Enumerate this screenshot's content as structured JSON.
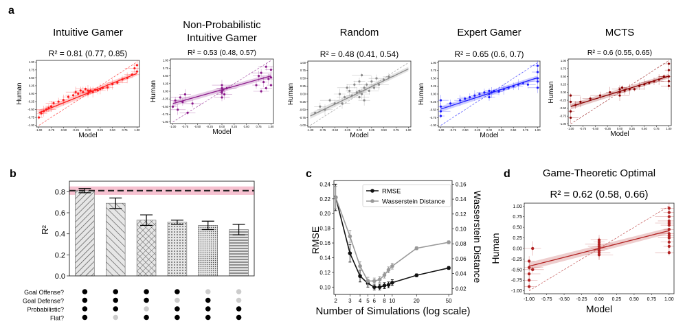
{
  "panels": {
    "a": "a",
    "b": "b",
    "c": "c",
    "d": "d"
  },
  "chart_data": [
    {
      "panel": "a",
      "type": "scatter",
      "title": "Intuitive Gamer",
      "r2": "R² = 0.81 (0.77, 0.85)",
      "xlabel": "Model",
      "ylabel": "Human",
      "xlim": [
        -1.05,
        1.05
      ],
      "ylim": [
        -1.05,
        1.05
      ],
      "xticks": [
        "-1.00",
        "-0.75",
        "-0.50",
        "-0.25",
        "0.00",
        "0.25",
        "0.50",
        "0.75",
        "1.00"
      ],
      "yticks": [
        "1.00",
        "0.75",
        "0.50",
        "0.25",
        "0.00",
        "-0.25",
        "-0.50",
        "-0.75",
        "-1.00"
      ],
      "color": "#ff1a1a",
      "fit": {
        "slope": 0.62,
        "intercept": 0.02
      },
      "points": [
        [
          -1,
          -0.75
        ],
        [
          -0.95,
          -0.62
        ],
        [
          -0.9,
          -0.55
        ],
        [
          -0.85,
          -0.5
        ],
        [
          -0.8,
          -0.45
        ],
        [
          -0.75,
          -0.4
        ],
        [
          -0.7,
          -0.3
        ],
        [
          -0.6,
          -0.25
        ],
        [
          -0.5,
          -0.2
        ],
        [
          -0.4,
          -0.1
        ],
        [
          -0.3,
          -0.05
        ],
        [
          -0.25,
          0.05
        ],
        [
          -0.2,
          0.0
        ],
        [
          -0.15,
          0.1
        ],
        [
          -0.1,
          0.05
        ],
        [
          -0.05,
          0.15
        ],
        [
          0,
          0.0
        ],
        [
          0,
          0.1
        ],
        [
          0.02,
          0.05
        ],
        [
          0.05,
          0.1
        ],
        [
          0.1,
          0.05
        ],
        [
          0.15,
          0.12
        ],
        [
          0.2,
          0.1
        ],
        [
          0.25,
          0.15
        ],
        [
          0.3,
          0.18
        ],
        [
          0.4,
          0.2
        ],
        [
          0.5,
          0.3
        ],
        [
          0.6,
          0.35
        ],
        [
          0.7,
          0.45
        ],
        [
          0.8,
          0.5
        ],
        [
          0.9,
          0.6
        ],
        [
          0.95,
          0.8
        ],
        [
          1,
          0.9
        ],
        [
          1,
          0.7
        ]
      ]
    },
    {
      "panel": "a",
      "type": "scatter",
      "title": "Non-Probabilistic Intuitive Gamer",
      "title_lines": [
        "Non-Probabilistic",
        "Intuitive Gamer"
      ],
      "r2": "R² = 0.53 (0.48, 0.57)",
      "xlabel": "Model",
      "ylabel": "Human",
      "xlim": [
        -1.05,
        1.05
      ],
      "ylim": [
        -1.05,
        1.05
      ],
      "xticks": [
        "-1.00",
        "-0.75",
        "-0.50",
        "-0.25",
        "0.00",
        "0.25",
        "0.50",
        "0.75",
        "1.00"
      ],
      "yticks": [
        "1.00",
        "0.75",
        "0.50",
        "0.25",
        "0.00",
        "-0.25",
        "-0.50",
        "-0.75",
        "-1.00"
      ],
      "color": "#8b1a8b",
      "fit": {
        "slope": 0.45,
        "intercept": 0.05
      },
      "points": [
        [
          -1,
          -0.5
        ],
        [
          -0.95,
          -0.3
        ],
        [
          -0.9,
          -0.6
        ],
        [
          -0.85,
          -0.2
        ],
        [
          -0.8,
          -0.35
        ],
        [
          -0.75,
          -0.1
        ],
        [
          -0.7,
          -0.7
        ],
        [
          -0.6,
          -0.4
        ],
        [
          0,
          0.0
        ],
        [
          0,
          0.1
        ],
        [
          0,
          -0.2
        ],
        [
          0,
          0.2
        ],
        [
          0.02,
          0.05
        ],
        [
          0,
          -0.05
        ],
        [
          0.05,
          -0.1
        ],
        [
          0.1,
          0.1
        ],
        [
          0.7,
          0.2
        ],
        [
          0.75,
          0.5
        ],
        [
          0.8,
          0.0
        ],
        [
          0.8,
          0.6
        ],
        [
          0.85,
          0.3
        ],
        [
          0.9,
          0.1
        ],
        [
          0.9,
          0.8
        ],
        [
          0.95,
          0.4
        ],
        [
          1,
          0.2
        ],
        [
          1,
          0.7
        ],
        [
          1,
          0.45
        ]
      ]
    },
    {
      "panel": "a",
      "type": "scatter",
      "title": "Random",
      "r2": "R² = 0.48 (0.41, 0.54)",
      "xlabel": "Model",
      "ylabel": "Human",
      "xlim": [
        -1.05,
        1.05
      ],
      "ylim": [
        -1.05,
        1.05
      ],
      "xticks": [
        "-1.00",
        "-0.75",
        "-0.50",
        "-0.25",
        "0.00",
        "0.25",
        "0.50",
        "0.75",
        "1.00"
      ],
      "yticks": [
        "1.00",
        "0.75",
        "0.50",
        "0.25",
        "0.00",
        "-0.25",
        "-0.50",
        "-0.75",
        "-1.00"
      ],
      "color": "#888888",
      "fit": {
        "slope": 0.75,
        "intercept": 0.05
      },
      "points": [
        [
          -0.9,
          -0.6
        ],
        [
          -0.8,
          -0.4
        ],
        [
          -0.7,
          -0.5
        ],
        [
          -0.6,
          -0.2
        ],
        [
          -0.5,
          -0.3
        ],
        [
          -0.4,
          0.0
        ],
        [
          -0.3,
          -0.1
        ],
        [
          -0.25,
          0.2
        ],
        [
          -0.2,
          0.1
        ],
        [
          -0.15,
          -0.05
        ],
        [
          -0.1,
          0.3
        ],
        [
          -0.05,
          0.05
        ],
        [
          0,
          0.1
        ],
        [
          0,
          0.4
        ],
        [
          0.05,
          0.0
        ],
        [
          0.05,
          0.6
        ],
        [
          0.1,
          0.2
        ],
        [
          0.1,
          -0.2
        ],
        [
          0.15,
          0.3
        ],
        [
          0.2,
          0.1
        ],
        [
          0.25,
          0.4
        ],
        [
          0.3,
          0.2
        ],
        [
          0.35,
          0.5
        ],
        [
          0.4,
          0.3
        ],
        [
          0.5,
          0.45
        ],
        [
          0.6,
          0.55
        ],
        [
          -0.35,
          -0.3
        ],
        [
          0.0,
          -0.1
        ]
      ]
    },
    {
      "panel": "a",
      "type": "scatter",
      "title": "Expert Gamer",
      "r2": "R² = 0.65 (0.6, 0.7)",
      "xlabel": "Model",
      "ylabel": "Human",
      "xlim": [
        -1.05,
        1.05
      ],
      "ylim": [
        -1.05,
        1.05
      ],
      "xticks": [
        "-1.00",
        "-0.75",
        "-0.50",
        "-0.25",
        "0.00",
        "0.25",
        "0.50",
        "0.75",
        "1.00"
      ],
      "yticks": [
        "1.00",
        "0.75",
        "0.50",
        "0.25",
        "0.00",
        "-0.25",
        "-0.50",
        "-0.75",
        "-1.00"
      ],
      "color": "#1a1aff",
      "fit": {
        "slope": 0.5,
        "intercept": 0.02
      },
      "points": [
        [
          -1,
          -0.7
        ],
        [
          -1,
          -0.4
        ],
        [
          -1,
          -0.2
        ],
        [
          -1,
          -0.55
        ],
        [
          -0.8,
          -0.3
        ],
        [
          -0.6,
          -0.2
        ],
        [
          -0.5,
          -0.15
        ],
        [
          -0.4,
          -0.1
        ],
        [
          -0.3,
          -0.05
        ],
        [
          -0.2,
          0.0
        ],
        [
          -0.1,
          0.05
        ],
        [
          0,
          0.0
        ],
        [
          0,
          0.1
        ],
        [
          0,
          -0.1
        ],
        [
          0.05,
          0.05
        ],
        [
          0.1,
          0.1
        ],
        [
          0.2,
          0.08
        ],
        [
          0.3,
          0.15
        ],
        [
          0.4,
          0.2
        ],
        [
          0.5,
          0.25
        ],
        [
          0.6,
          0.3
        ],
        [
          0.7,
          0.35
        ],
        [
          0.8,
          0.3
        ],
        [
          1,
          0.2
        ],
        [
          1,
          0.5
        ],
        [
          1,
          0.7
        ],
        [
          1,
          0.9
        ],
        [
          1,
          0.4
        ]
      ]
    },
    {
      "panel": "a",
      "type": "scatter",
      "title": "MCTS",
      "r2": "R² = 0.6 (0.55, 0.65)",
      "xlabel": "Model",
      "ylabel": "Human",
      "xlim": [
        -1.05,
        1.05
      ],
      "ylim": [
        -1.05,
        1.05
      ],
      "xticks": [
        "-1.00",
        "-0.75",
        "-0.50",
        "-0.25",
        "0.00",
        "0.25",
        "0.50",
        "0.75",
        "1.00"
      ],
      "yticks": [
        "1.00",
        "0.75",
        "0.50",
        "0.25",
        "0.00",
        "-0.25",
        "-0.50",
        "-0.75",
        "-1.00"
      ],
      "color": "#8b0000",
      "fit": {
        "slope": 0.48,
        "intercept": 0.03
      },
      "points": [
        [
          -1,
          -0.6
        ],
        [
          -1,
          -0.3
        ],
        [
          -1,
          -0.8
        ],
        [
          -1,
          -0.1
        ],
        [
          -0.9,
          -0.4
        ],
        [
          -0.8,
          -0.3
        ],
        [
          -0.6,
          -0.2
        ],
        [
          -0.4,
          -0.1
        ],
        [
          -0.2,
          0.0
        ],
        [
          0,
          0.0
        ],
        [
          0,
          0.1
        ],
        [
          0,
          -0.1
        ],
        [
          0.05,
          0.15
        ],
        [
          0.1,
          0.05
        ],
        [
          0.2,
          0.1
        ],
        [
          0.3,
          0.1
        ],
        [
          0.4,
          0.2
        ],
        [
          0.5,
          0.25
        ],
        [
          0.6,
          0.3
        ],
        [
          0.7,
          0.35
        ],
        [
          0.8,
          0.4
        ],
        [
          0.9,
          0.5
        ],
        [
          1,
          0.2
        ],
        [
          1,
          0.5
        ],
        [
          1,
          0.7
        ],
        [
          1,
          0.9
        ],
        [
          1,
          0.35
        ]
      ]
    },
    {
      "panel": "b",
      "type": "bar",
      "ylabel": "R²",
      "ylim": [
        0,
        0.9
      ],
      "yticks": [
        "0.0",
        "0.2",
        "0.4",
        "0.6",
        "0.8"
      ],
      "values": [
        0.81,
        0.69,
        0.53,
        0.51,
        0.48,
        0.44
      ],
      "errors": [
        0.02,
        0.05,
        0.05,
        0.02,
        0.04,
        0.05
      ],
      "reference": 0.81,
      "band": [
        0.77,
        0.85
      ],
      "hatches": [
        "diag",
        "diag-wide",
        "cross",
        "dots",
        "dots-fine",
        "horiz"
      ],
      "row_labels": [
        "Goal Offense?",
        "Goal Defense?",
        "Probabilistic?",
        "Flat?"
      ],
      "dots": [
        [
          1,
          1,
          1,
          1
        ],
        [
          1,
          1,
          1,
          0
        ],
        [
          1,
          1,
          0,
          1
        ],
        [
          1,
          0,
          1,
          1
        ],
        [
          0,
          1,
          1,
          1
        ],
        [
          0,
          0,
          1,
          1
        ]
      ],
      "dot_on": "#000000",
      "dot_off": "#cccccc",
      "band_color": "#f4b6c8"
    },
    {
      "panel": "c",
      "type": "line",
      "xlabel": "Number of Simulations (log scale)",
      "ylabel": "RMSE",
      "ylabel_right": "Wasserstein Distance",
      "x": [
        2,
        3,
        4,
        5,
        6,
        7,
        8,
        9,
        10,
        20,
        50
      ],
      "xticks": [
        "2",
        "3",
        "4",
        "5",
        "6",
        "8",
        "10",
        "20",
        "50"
      ],
      "xtick_values": [
        2,
        3,
        4,
        5,
        6,
        8,
        10,
        20,
        50
      ],
      "ylim": [
        0.09,
        0.245
      ],
      "yticks": [
        "0.24",
        "0.22",
        "0.20",
        "0.18",
        "0.16",
        "0.14",
        "0.12",
        "0.10"
      ],
      "ylim_right": [
        0.012,
        0.165
      ],
      "yticks_right": [
        "0.16",
        "0.14",
        "0.12",
        "0.10",
        "0.08",
        "0.06",
        "0.04",
        "0.02"
      ],
      "series": [
        {
          "name": "RMSE",
          "values": [
            0.222,
            0.146,
            0.115,
            0.105,
            0.1,
            0.1,
            0.102,
            0.103,
            0.106,
            0.116,
            0.126
          ],
          "errors": [
            0.018,
            0.012,
            0.008,
            0.005,
            0.004,
            0.004,
            0.004,
            0.004,
            0.004,
            0.002,
            0.002
          ],
          "color": "#111111",
          "axis": "left"
        },
        {
          "name": "Wasserstein Distance",
          "values": [
            0.142,
            0.09,
            0.05,
            0.03,
            0.03,
            0.032,
            0.038,
            0.045,
            0.05,
            0.074,
            0.082
          ],
          "errors": [
            0.015,
            0.008,
            0.006,
            0.005,
            0.004,
            0.004,
            0.004,
            0.004,
            0.004,
            0.002,
            0.002
          ],
          "color": "#999999",
          "axis": "right"
        }
      ]
    },
    {
      "panel": "d",
      "type": "scatter",
      "title": "Game-Theoretic Optimal",
      "r2": "R² = 0.62 (0.58, 0.66)",
      "xlabel": "Model",
      "ylabel": "Human",
      "xlim": [
        -1.07,
        1.07
      ],
      "ylim": [
        -1.07,
        1.07
      ],
      "xticks": [
        "-1.00",
        "-0.75",
        "-0.50",
        "-0.25",
        "0.00",
        "0.25",
        "0.50",
        "0.75",
        "1.00"
      ],
      "yticks": [
        "1.00",
        "0.75",
        "0.50",
        "0.25",
        "0.00",
        "-0.25",
        "-0.50",
        "-0.75",
        "-1.00"
      ],
      "color": "#b22222",
      "fit": {
        "slope": 0.42,
        "intercept": 0.0
      },
      "points": [
        [
          -1,
          -0.9
        ],
        [
          -1,
          -0.75
        ],
        [
          -1,
          -0.6
        ],
        [
          -1,
          -0.45
        ],
        [
          -1,
          -0.3
        ],
        [
          -0.95,
          0.0
        ],
        [
          -0.95,
          -0.5
        ],
        [
          0,
          -0.15
        ],
        [
          0,
          -0.05
        ],
        [
          0,
          0.0
        ],
        [
          0,
          0.05
        ],
        [
          0,
          0.1
        ],
        [
          0,
          0.15
        ],
        [
          0,
          0.2
        ],
        [
          0,
          -0.1
        ],
        [
          1,
          -0.1
        ],
        [
          1,
          0.05
        ],
        [
          1,
          0.15
        ],
        [
          1,
          0.25
        ],
        [
          1,
          0.35
        ],
        [
          1,
          0.45
        ],
        [
          1,
          0.55
        ],
        [
          1,
          0.65
        ],
        [
          1,
          0.75
        ],
        [
          1,
          0.85
        ],
        [
          1,
          0.95
        ],
        [
          1,
          0.3
        ],
        [
          1,
          0.6
        ]
      ]
    }
  ]
}
